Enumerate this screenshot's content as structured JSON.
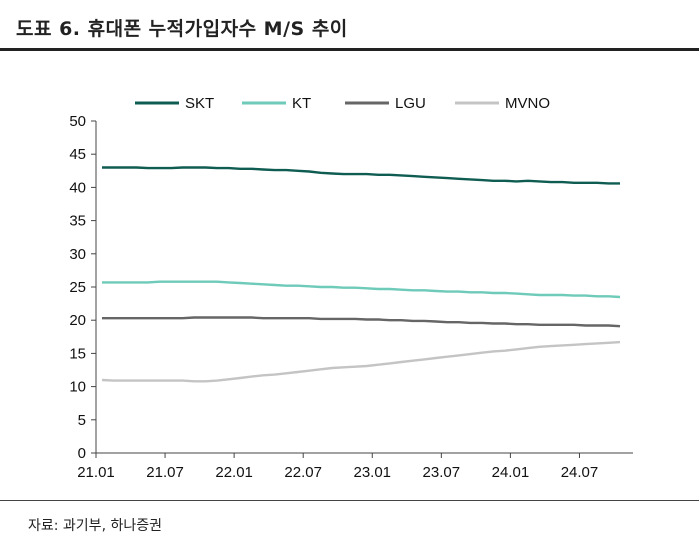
{
  "title": "도표 6. 휴대폰 누적가입자수 M/S 추이",
  "source": "자료: 과기부, 하나증권",
  "chart_data": {
    "type": "line",
    "title": "도표 6. 휴대폰 누적가입자수 M/S 추이",
    "xlabel": "",
    "ylabel": "",
    "ylim": [
      0,
      50
    ],
    "yticks": [
      0,
      5,
      10,
      15,
      20,
      25,
      30,
      35,
      40,
      45,
      50
    ],
    "x_tick_labels": [
      "21.01",
      "21.07",
      "22.01",
      "22.07",
      "23.01",
      "23.07",
      "24.01",
      "24.07"
    ],
    "x_tick_index": [
      0,
      6,
      12,
      18,
      24,
      30,
      36,
      42
    ],
    "num_points": 46,
    "grid": false,
    "legend_position": "top",
    "series": [
      {
        "name": "SKT",
        "color": "#0f5c52",
        "values": [
          43.0,
          43.0,
          43.0,
          43.0,
          42.9,
          42.9,
          42.9,
          43.0,
          43.0,
          43.0,
          42.9,
          42.9,
          42.8,
          42.8,
          42.7,
          42.6,
          42.6,
          42.5,
          42.4,
          42.2,
          42.1,
          42.0,
          42.0,
          42.0,
          41.9,
          41.9,
          41.8,
          41.7,
          41.6,
          41.5,
          41.4,
          41.3,
          41.2,
          41.1,
          41.0,
          41.0,
          40.9,
          41.0,
          40.9,
          40.8,
          40.8,
          40.7,
          40.7,
          40.7,
          40.6,
          40.6
        ]
      },
      {
        "name": "KT",
        "color": "#6ecab9",
        "values": [
          25.7,
          25.7,
          25.7,
          25.7,
          25.7,
          25.8,
          25.8,
          25.8,
          25.8,
          25.8,
          25.8,
          25.7,
          25.6,
          25.5,
          25.4,
          25.3,
          25.2,
          25.2,
          25.1,
          25.0,
          25.0,
          24.9,
          24.9,
          24.8,
          24.7,
          24.7,
          24.6,
          24.5,
          24.5,
          24.4,
          24.3,
          24.3,
          24.2,
          24.2,
          24.1,
          24.1,
          24.0,
          23.9,
          23.8,
          23.8,
          23.8,
          23.7,
          23.7,
          23.6,
          23.6,
          23.5
        ]
      },
      {
        "name": "LGU",
        "color": "#666666",
        "values": [
          20.3,
          20.3,
          20.3,
          20.3,
          20.3,
          20.3,
          20.3,
          20.3,
          20.4,
          20.4,
          20.4,
          20.4,
          20.4,
          20.4,
          20.3,
          20.3,
          20.3,
          20.3,
          20.3,
          20.2,
          20.2,
          20.2,
          20.2,
          20.1,
          20.1,
          20.0,
          20.0,
          19.9,
          19.9,
          19.8,
          19.7,
          19.7,
          19.6,
          19.6,
          19.5,
          19.5,
          19.4,
          19.4,
          19.3,
          19.3,
          19.3,
          19.3,
          19.2,
          19.2,
          19.2,
          19.1
        ]
      },
      {
        "name": "MVNO",
        "color": "#c4c4c4",
        "values": [
          11.0,
          10.9,
          10.9,
          10.9,
          10.9,
          10.9,
          10.9,
          10.9,
          10.8,
          10.8,
          10.9,
          11.1,
          11.3,
          11.5,
          11.7,
          11.8,
          12.0,
          12.2,
          12.4,
          12.6,
          12.8,
          12.9,
          13.0,
          13.1,
          13.3,
          13.5,
          13.7,
          13.9,
          14.1,
          14.3,
          14.5,
          14.7,
          14.9,
          15.1,
          15.3,
          15.4,
          15.6,
          15.8,
          16.0,
          16.1,
          16.2,
          16.3,
          16.4,
          16.5,
          16.6,
          16.7
        ]
      }
    ]
  }
}
